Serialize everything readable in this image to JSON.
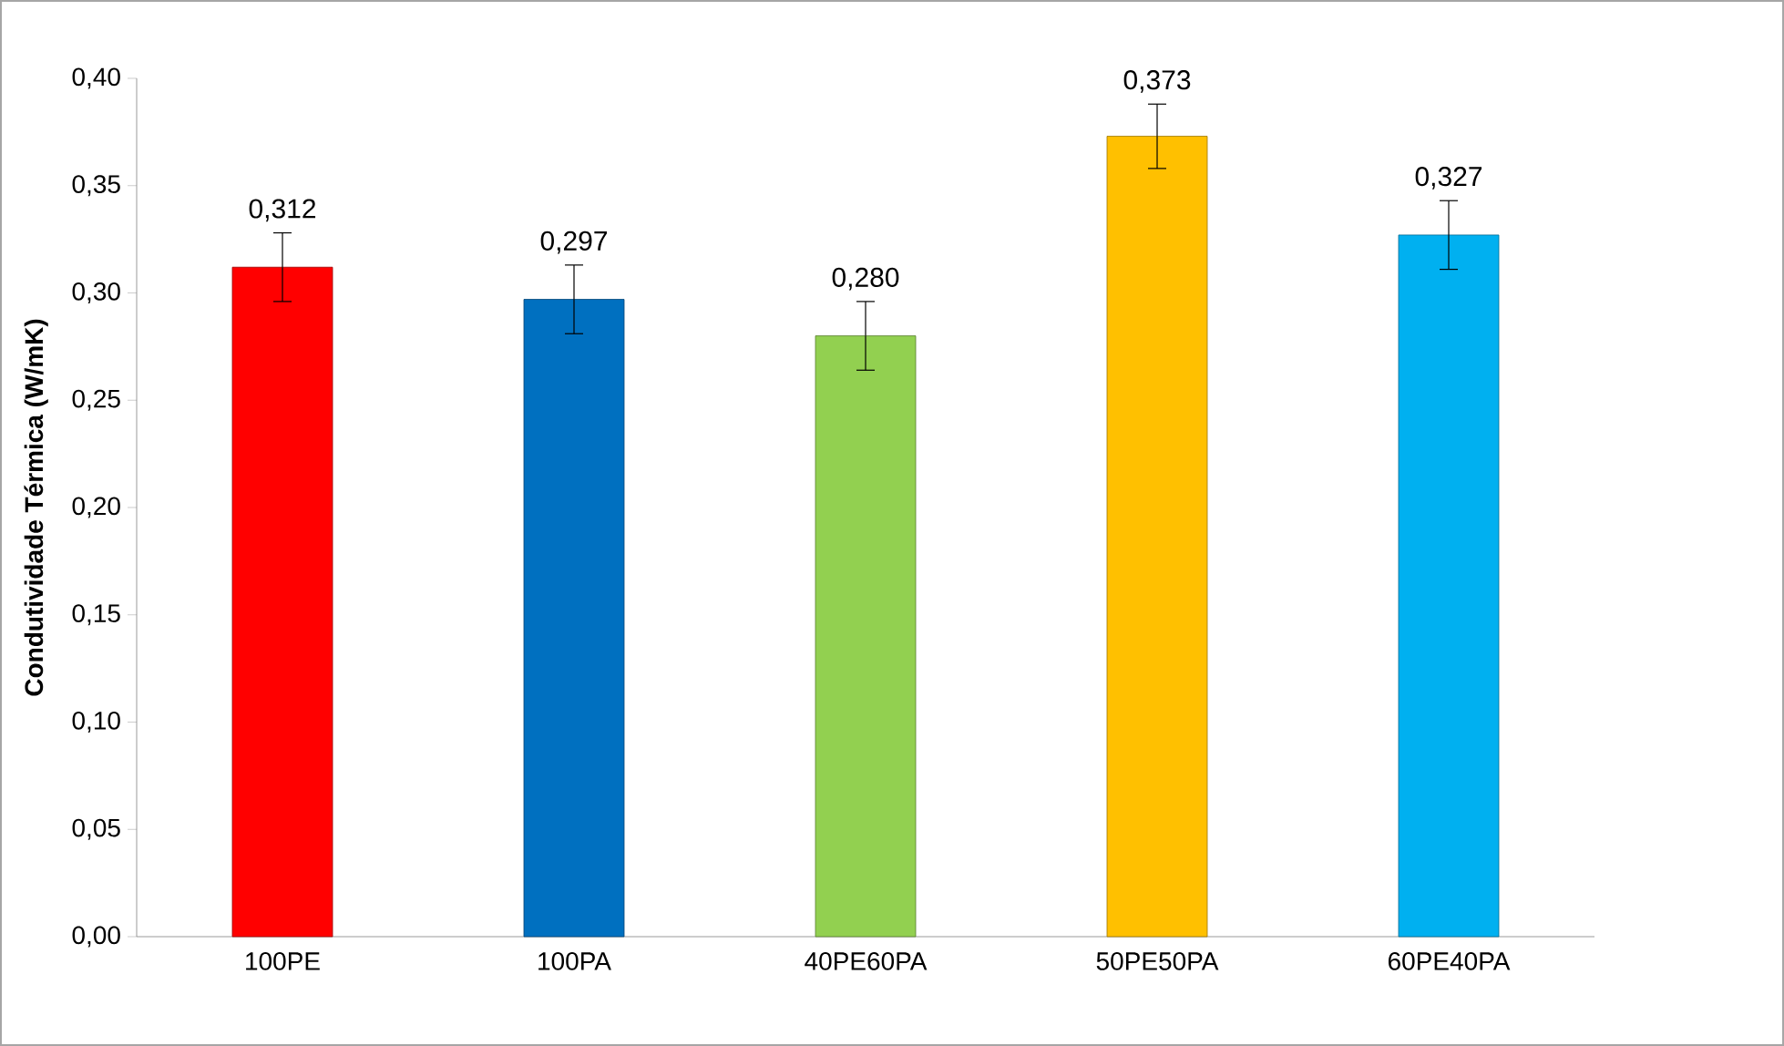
{
  "chart_data": {
    "type": "bar",
    "ylabel": "Condutividade Térmica (W/mK)",
    "categories": [
      "100PE",
      "100PA",
      "40PE60PA",
      "50PE50PA",
      "60PE40PA"
    ],
    "values": [
      0.312,
      0.297,
      0.28,
      0.373,
      0.327
    ],
    "colors": [
      "#ff0000",
      "#0070c0",
      "#92d050",
      "#ffc000",
      "#00b0f0"
    ],
    "errors": [
      0.016,
      0.016,
      0.016,
      0.015,
      0.016
    ],
    "value_labels": [
      "0,312",
      "0,297",
      "0,280",
      "0,373",
      "0,327"
    ],
    "ylim": [
      0,
      0.4
    ],
    "yticks": [
      {
        "value": 0,
        "label": "0,00"
      },
      {
        "value": 0.05,
        "label": "0,05"
      },
      {
        "value": 0.1,
        "label": "0,10"
      },
      {
        "value": 0.15,
        "label": "0,15"
      },
      {
        "value": 0.2,
        "label": "0,20"
      },
      {
        "value": 0.25,
        "label": "0,25"
      },
      {
        "value": 0.3,
        "label": "0,30"
      },
      {
        "value": 0.35,
        "label": "0,35"
      },
      {
        "value": 0.4,
        "label": "0,40"
      }
    ]
  }
}
